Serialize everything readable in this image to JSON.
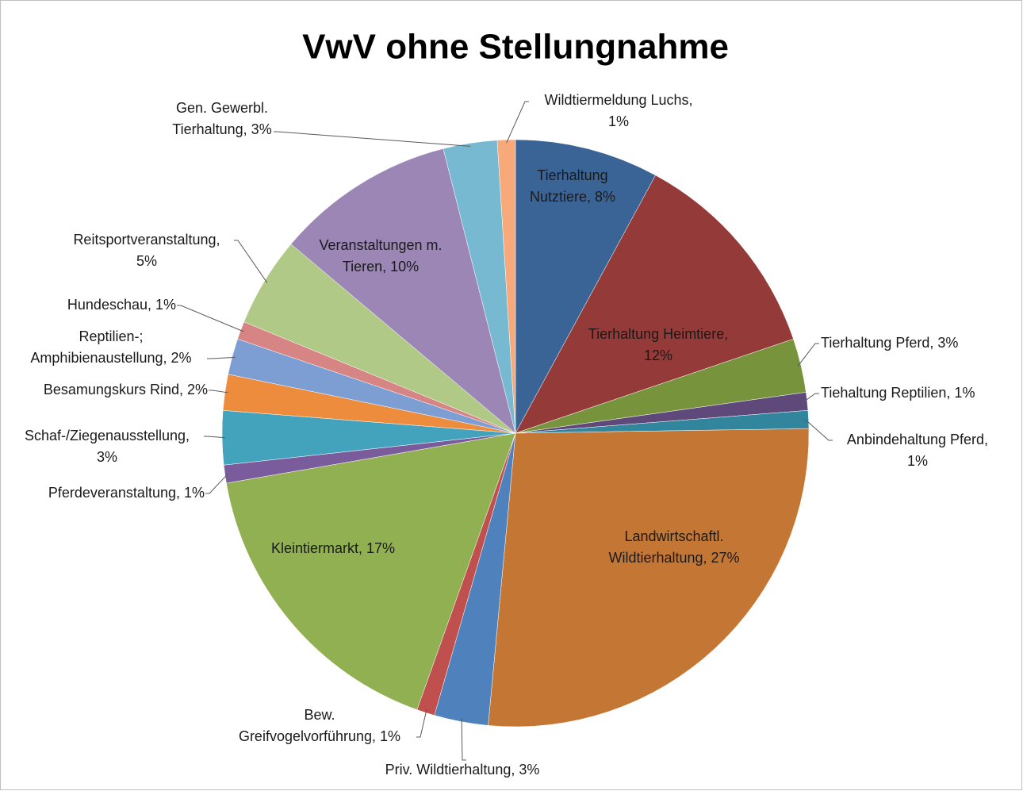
{
  "chart_data": {
    "type": "pie",
    "title": "VwV ohne Stellungnahme",
    "values": [
      8,
      12,
      3,
      1,
      1,
      27,
      3,
      1,
      17,
      1,
      3,
      2,
      2,
      1,
      5,
      10,
      3,
      1
    ],
    "value_labels": [
      [
        "Tierhaltung",
        "Nutztiere, 8%"
      ],
      [
        "Tierhaltung Heimtiere,",
        "12%"
      ],
      [
        "Tierhaltung Pferd, 3%"
      ],
      [
        "Tiehaltung Reptilien, 1%"
      ],
      [
        "Anbindehaltung Pferd,",
        "1%"
      ],
      [
        "Landwirtschaftl.",
        "Wildtierhaltung, 27%"
      ],
      [
        "Priv. Wildtierhaltung, 3%"
      ],
      [
        "Bew.",
        "Greifvogelvorführung, 1%"
      ],
      [
        "Kleintiermarkt, 17%"
      ],
      [
        "Pferdeveranstaltung, 1%"
      ],
      [
        "Schaf-/Ziegenausstellung,",
        "3%"
      ],
      [
        "Besamungskurs Rind, 2%"
      ],
      [
        "Reptilien-;",
        "Amphibienaustellung, 2%"
      ],
      [
        "Hundeschau, 1%"
      ],
      [
        "Reitsportveranstaltung,",
        "5%"
      ],
      [
        "Veranstaltungen m.",
        "Tieren, 10%"
      ],
      [
        "Gen. Gewerbl.",
        "Tierhaltung, 3%"
      ],
      [
        "Wildtiermeldung Luchs,",
        "1%"
      ]
    ],
    "colors": [
      "#3b6496",
      "#943a38",
      "#77933c",
      "#5f497a",
      "#31859c",
      "#c47634",
      "#4f81bd",
      "#c0504d",
      "#91b052",
      "#7a5c9c",
      "#43a3bd",
      "#ee8c3e",
      "#7c9ed3",
      "#d68584",
      "#b0c986",
      "#9b86b5",
      "#78b9d2",
      "#f8a97a"
    ]
  }
}
